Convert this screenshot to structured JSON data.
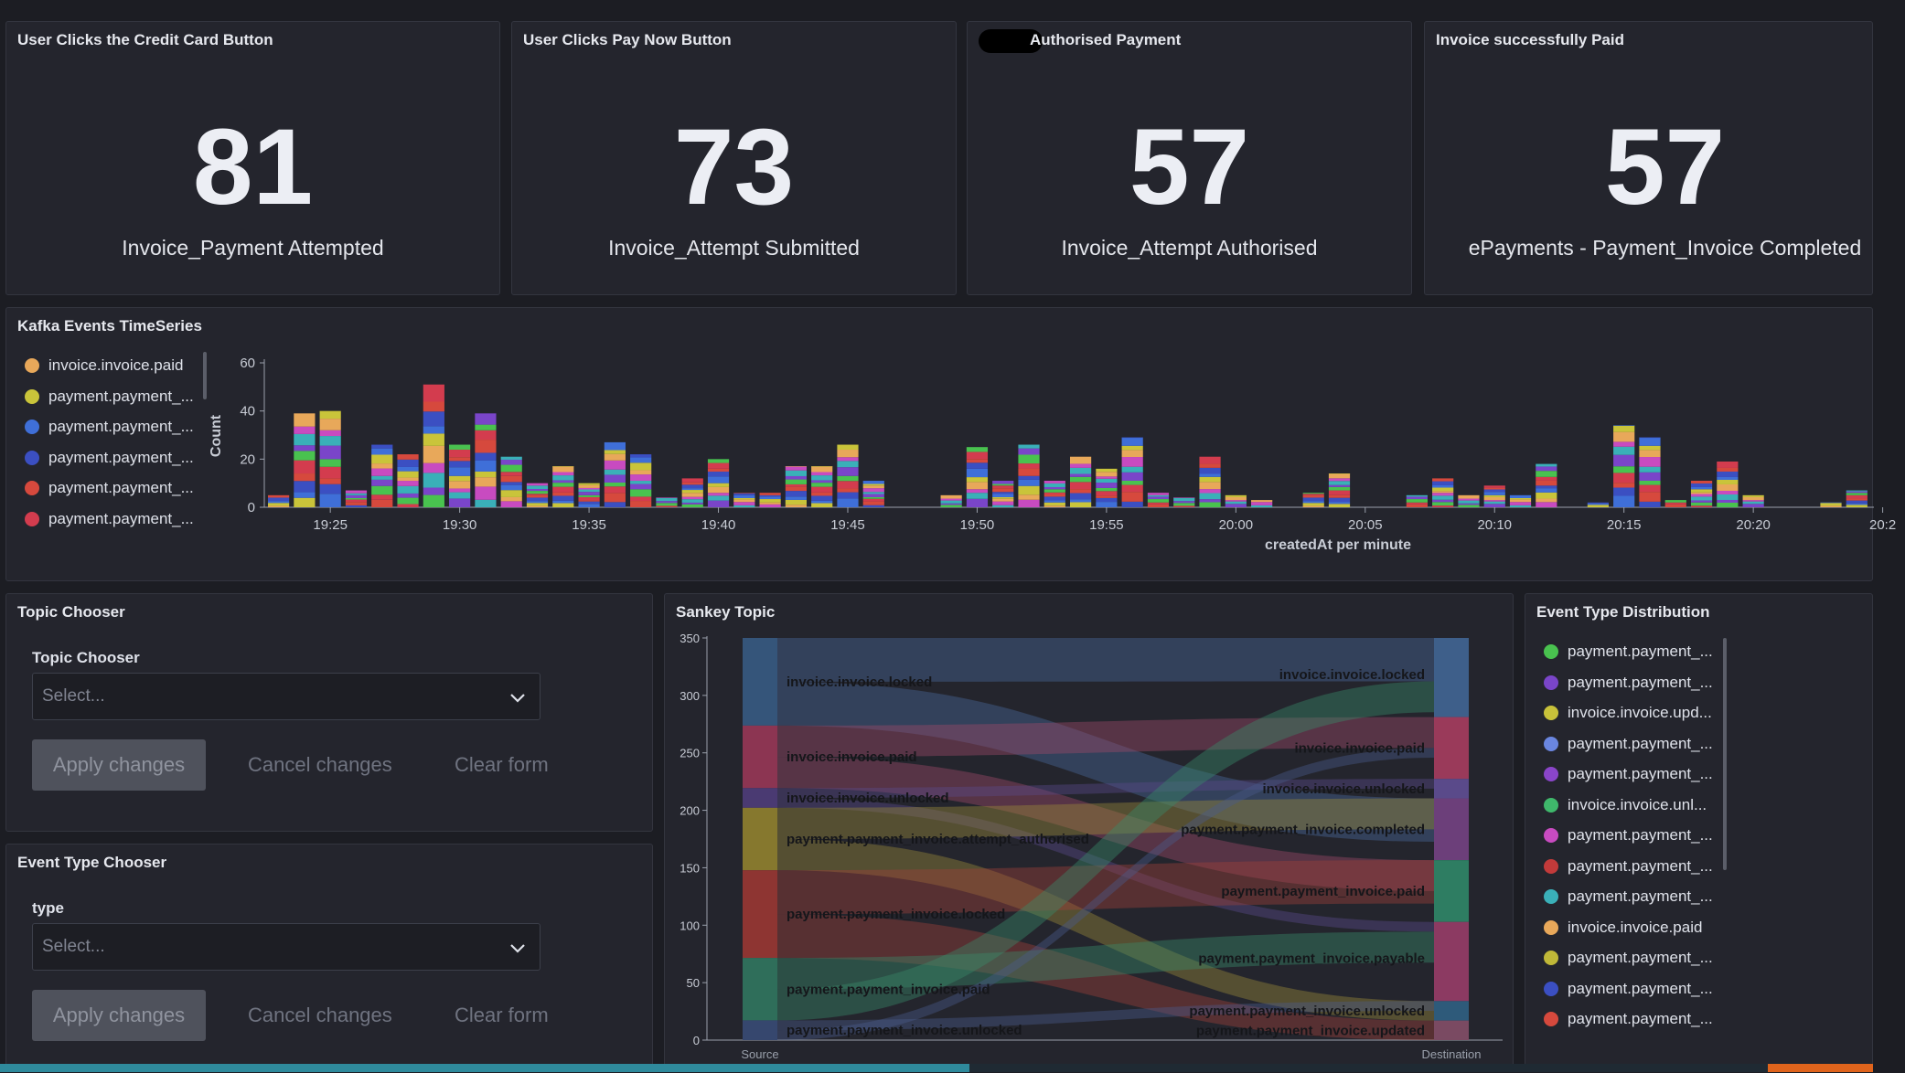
{
  "metrics": [
    {
      "title": "User Clicks the Credit Card Button",
      "value": "81",
      "label": "Invoice_Payment Attempted"
    },
    {
      "title": "User Clicks Pay Now Button",
      "value": "73",
      "label": "Invoice_Attempt Submitted"
    },
    {
      "title": "Authorised Payment",
      "value": "57",
      "label": "Invoice_Attempt Authorised"
    },
    {
      "title": "Invoice successfully Paid",
      "value": "57",
      "label": "ePayments - Payment_Invoice Completed"
    }
  ],
  "timeseries": {
    "title": "Kafka Events TimeSeries",
    "legend": [
      {
        "label": "invoice.invoice.paid",
        "color": "#e8a85a"
      },
      {
        "label": "payment.payment_...",
        "color": "#c9c43a"
      },
      {
        "label": "payment.payment_...",
        "color": "#3f6fd8"
      },
      {
        "label": "payment.payment_...",
        "color": "#3b4fc2"
      },
      {
        "label": "payment.payment_...",
        "color": "#d6493d"
      },
      {
        "label": "payment.payment_...",
        "color": "#d33c4e"
      }
    ]
  },
  "topic_chooser": {
    "title": "Topic Chooser",
    "label": "Topic Chooser",
    "placeholder": "Select...",
    "apply": "Apply changes",
    "cancel": "Cancel changes",
    "clear": "Clear form"
  },
  "event_chooser": {
    "title": "Event Type Chooser",
    "label": "type",
    "placeholder": "Select...",
    "apply": "Apply changes",
    "cancel": "Cancel changes",
    "clear": "Clear form"
  },
  "sankey": {
    "title": "Sankey Topic"
  },
  "distribution": {
    "title": "Event Type Distribution",
    "items": [
      {
        "label": "payment.payment_...",
        "color": "#49c24f"
      },
      {
        "label": "payment.payment_...",
        "color": "#7a45c9"
      },
      {
        "label": "invoice.invoice.upd...",
        "color": "#c8c23a"
      },
      {
        "label": "payment.payment_...",
        "color": "#6a86e0"
      },
      {
        "label": "payment.payment_...",
        "color": "#8a45c9"
      },
      {
        "label": "invoice.invoice.unl...",
        "color": "#3fb86b"
      },
      {
        "label": "payment.payment_...",
        "color": "#c84bc0"
      },
      {
        "label": "payment.payment_...",
        "color": "#c23a3a"
      },
      {
        "label": "payment.payment_...",
        "color": "#3ab0b8"
      },
      {
        "label": "invoice.invoice.paid",
        "color": "#e8a85a"
      },
      {
        "label": "payment.payment_...",
        "color": "#c0b838"
      },
      {
        "label": "payment.payment_...",
        "color": "#3b4fc2"
      },
      {
        "label": "payment.payment_...",
        "color": "#d6493d"
      }
    ]
  },
  "chart_data": [
    {
      "type": "bar",
      "stacked": true,
      "title": "Kafka Events TimeSeries",
      "xlabel": "createdAt per minute",
      "ylabel": "Count",
      "ylim": [
        0,
        60
      ],
      "yticks": [
        0,
        20,
        40,
        60
      ],
      "xticks": [
        "19:25",
        "19:30",
        "19:35",
        "19:40",
        "19:45",
        "19:50",
        "19:55",
        "20:00",
        "20:05",
        "20:10",
        "20:15",
        "20:20",
        "20:2"
      ],
      "x": [
        "19:23",
        "19:24",
        "19:25",
        "19:26",
        "19:27",
        "19:28",
        "19:29",
        "19:30",
        "19:31",
        "19:32",
        "19:33",
        "19:34",
        "19:35",
        "19:36",
        "19:37",
        "19:38",
        "19:39",
        "19:40",
        "19:41",
        "19:42",
        "19:43",
        "19:44",
        "19:45",
        "19:46",
        "19:47",
        "19:48",
        "19:49",
        "19:50",
        "19:51",
        "19:52",
        "19:53",
        "19:54",
        "19:55",
        "19:56",
        "19:57",
        "19:58",
        "19:59",
        "20:00",
        "20:01",
        "20:02",
        "20:03",
        "20:04",
        "20:05",
        "20:06",
        "20:07",
        "20:08",
        "20:09",
        "20:10",
        "20:11",
        "20:12",
        "20:13",
        "20:14",
        "20:15",
        "20:16",
        "20:17",
        "20:18",
        "20:19",
        "20:20",
        "20:21",
        "20:22",
        "20:23",
        "20:24"
      ],
      "values": [
        5,
        39,
        40,
        7,
        26,
        22,
        51,
        26,
        39,
        21,
        10,
        17,
        10,
        27,
        22,
        4,
        12,
        20,
        6,
        6,
        17,
        17,
        26,
        11,
        0,
        0,
        5,
        25,
        11,
        26,
        11,
        21,
        16,
        29,
        6,
        4,
        21,
        5,
        3,
        0,
        6,
        14,
        0,
        0,
        5,
        12,
        5,
        9,
        5,
        18,
        0,
        2,
        34,
        29,
        3,
        11,
        19,
        5,
        0,
        0,
        2,
        7
      ]
    },
    {
      "type": "sankey",
      "title": "Sankey Topic",
      "ylim": [
        0,
        350
      ],
      "yticks": [
        0,
        50,
        100,
        150,
        200,
        250,
        300,
        350
      ],
      "source_axis_label": "Source",
      "destination_axis_label": "Destination",
      "source_nodes": [
        {
          "name": "invoice.invoice.locked",
          "value": 80
        },
        {
          "name": "invoice.invoice.paid",
          "value": 57
        },
        {
          "name": "invoice.invoice.unlocked",
          "value": 18
        },
        {
          "name": "payment.payment_invoice.attempt_authorised",
          "value": 57
        },
        {
          "name": "payment.payment_invoice.locked",
          "value": 80
        },
        {
          "name": "payment.payment_invoice.paid",
          "value": 57
        },
        {
          "name": "payment.payment_invoice.unlocked",
          "value": 18
        }
      ],
      "destination_nodes": [
        {
          "name": "invoice.invoice.locked",
          "value": 73
        },
        {
          "name": "invoice.invoice.paid",
          "value": 57
        },
        {
          "name": "invoice.invoice.unlocked",
          "value": 18
        },
        {
          "name": "payment.payment_invoice.completed",
          "value": 57
        },
        {
          "name": "payment.payment_invoice.paid",
          "value": 57
        },
        {
          "name": "payment.payment_invoice.payable",
          "value": 73
        },
        {
          "name": "payment.payment_invoice.unlocked",
          "value": 18
        },
        {
          "name": "payment.payment_invoice.updated",
          "value": 18
        }
      ]
    }
  ]
}
